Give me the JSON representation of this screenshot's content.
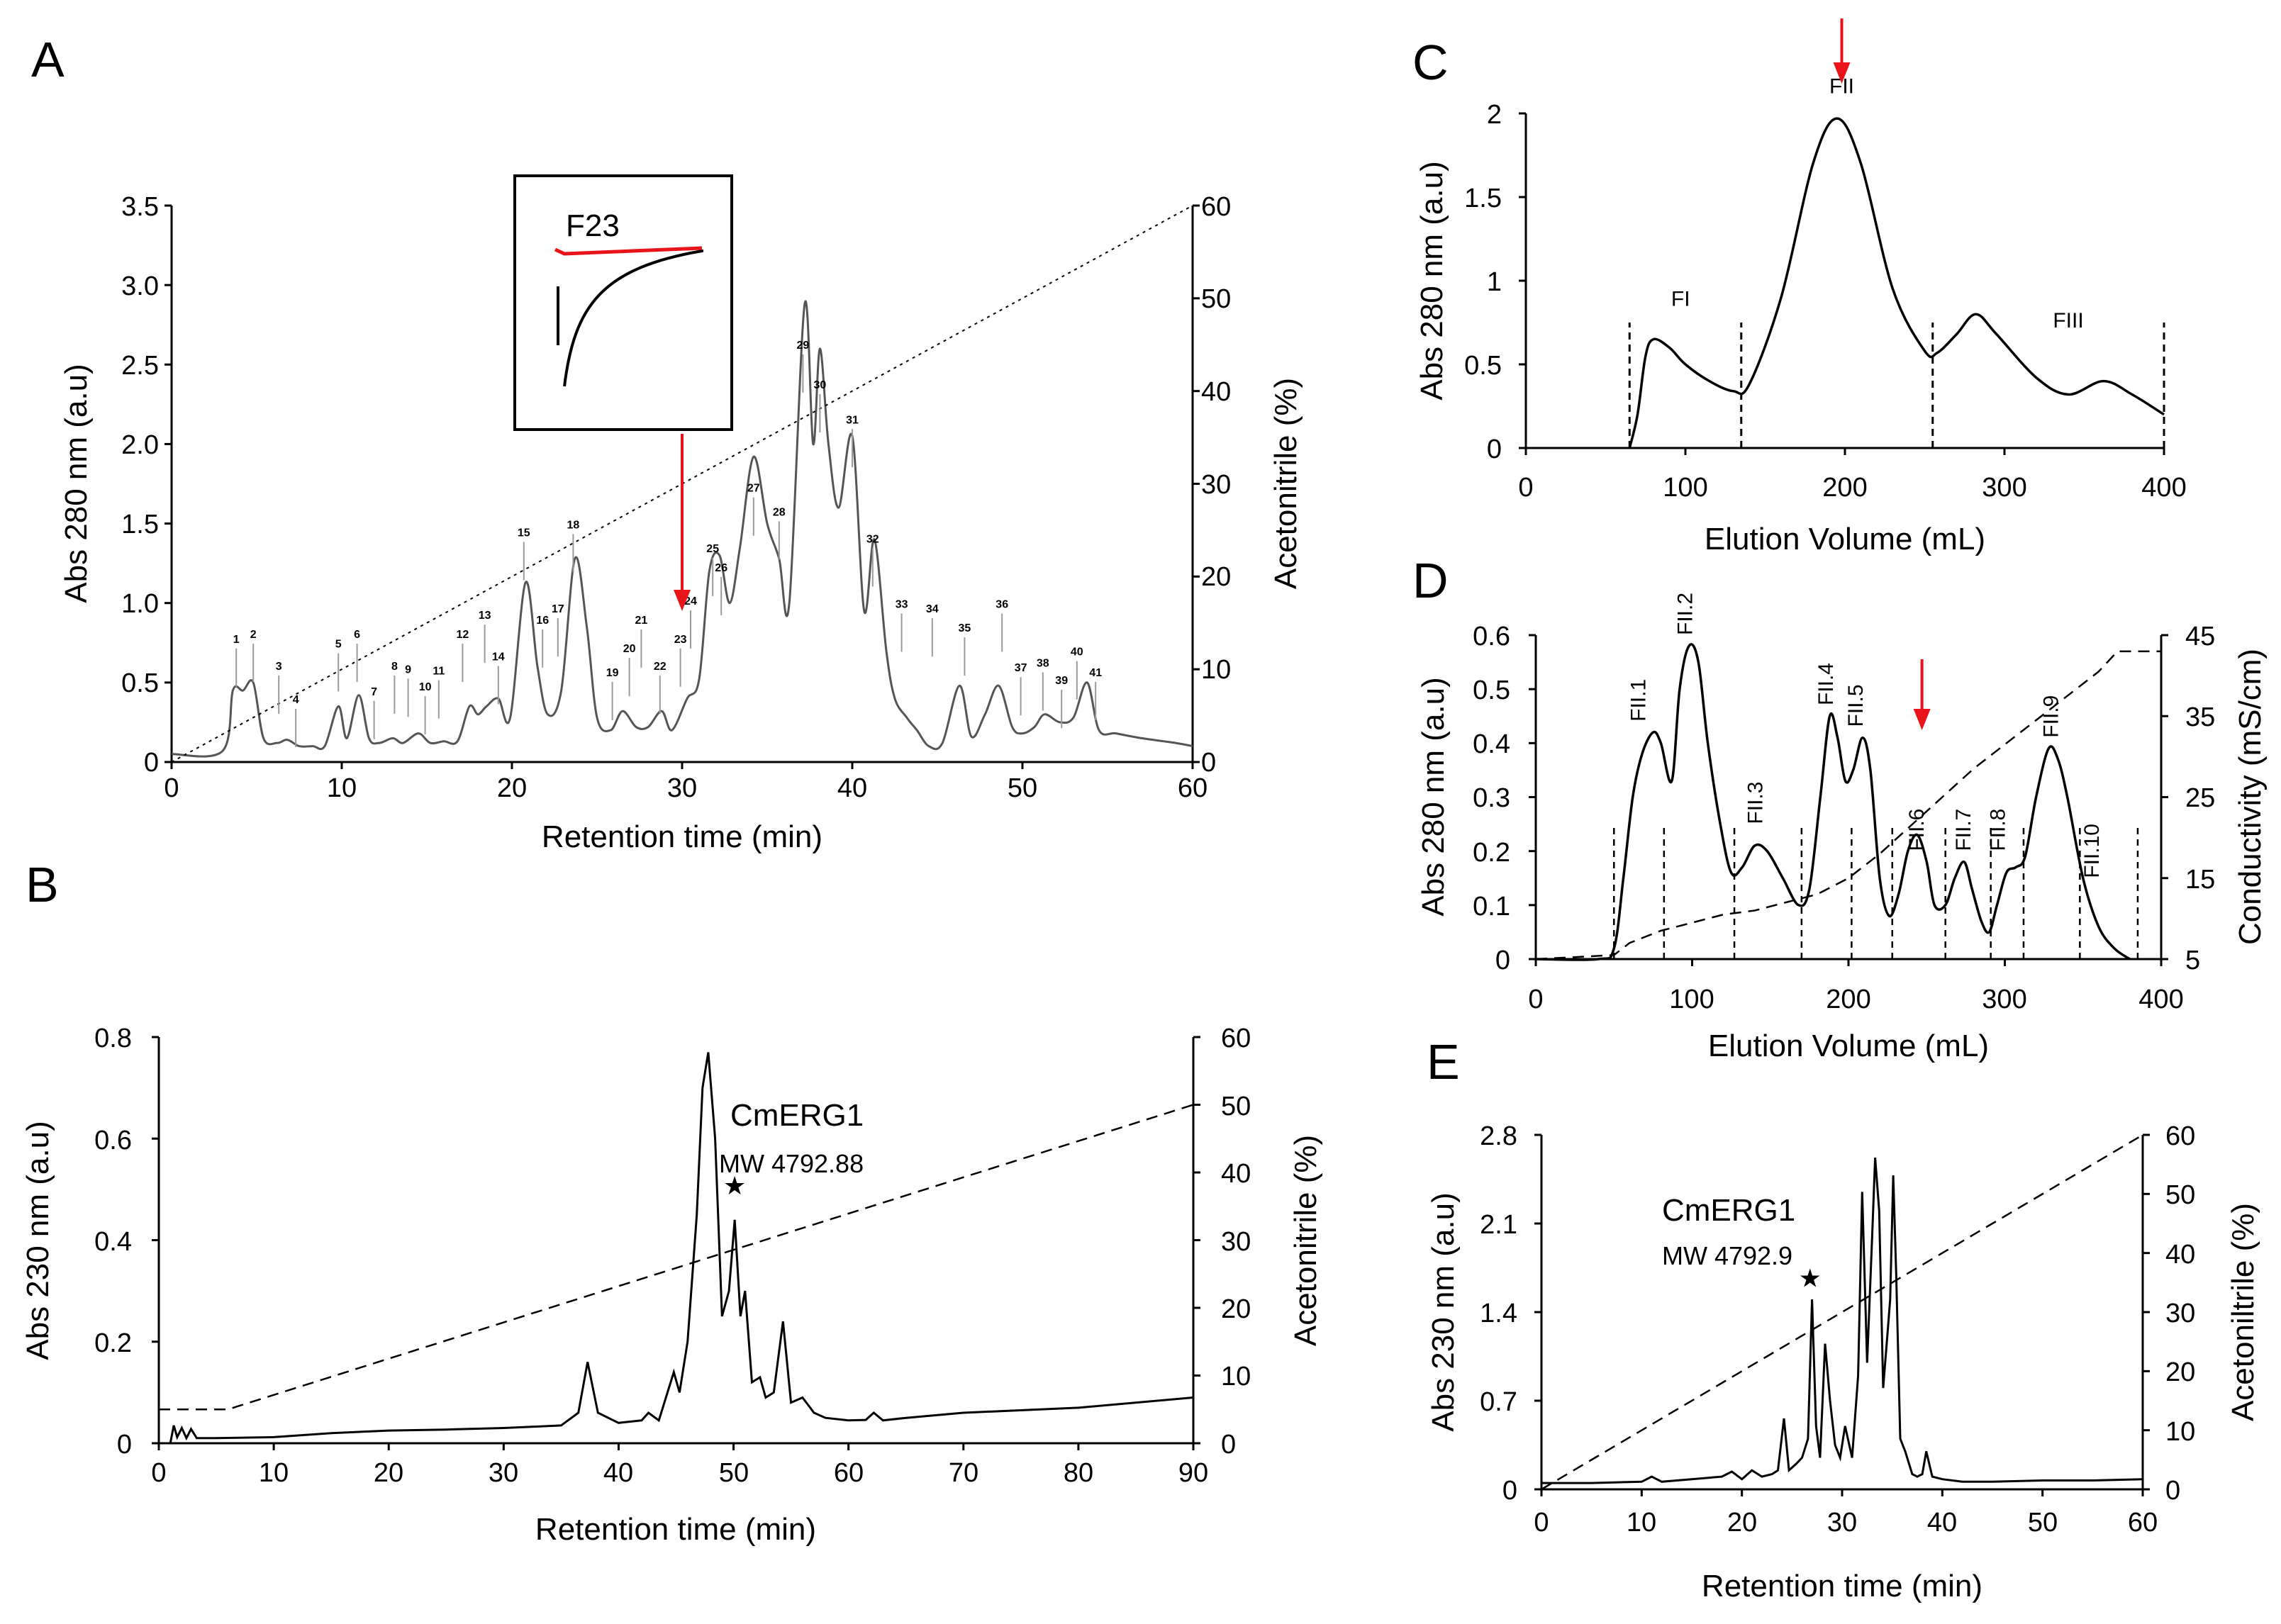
{
  "figure": {
    "panel_labels": [
      "A",
      "B",
      "C",
      "D",
      "E"
    ],
    "colors": {
      "trace": "#000000",
      "traceA": "#555555",
      "arrow": "#e8141a",
      "inset_red": "#e8141a"
    }
  },
  "chart_data": [
    {
      "id": "A",
      "type": "line",
      "xlabel": "Retention time (min)",
      "ylabel": "Abs 280 nm (a.u)",
      "y2label": "Acetonitrile (%)",
      "xlim": [
        0,
        60
      ],
      "ylim": [
        0,
        3.5
      ],
      "y2lim": [
        0,
        60
      ],
      "xticks": [
        "0",
        "10",
        "20",
        "30",
        "40",
        "50",
        "60"
      ],
      "yticks": [
        "0",
        "0.5",
        "1.0",
        "1.5",
        "2.0",
        "2.5",
        "3.0",
        "3.5"
      ],
      "y2ticks": [
        "0",
        "10",
        "20",
        "30",
        "40",
        "50",
        "60"
      ],
      "series": [
        {
          "name": "absorbance",
          "style": "solid",
          "x": [
            0,
            3,
            3.6,
            4.2,
            4.8,
            5.4,
            6.2,
            6.8,
            7.5,
            8.3,
            9,
            9.8,
            10.3,
            11,
            11.6,
            12.2,
            13,
            13.6,
            14.5,
            15.2,
            16,
            16.8,
            17.5,
            18,
            18.5,
            19.2,
            19.9,
            20.8,
            21.5,
            22.1,
            22.9,
            23.7,
            24.4,
            25,
            25.8,
            26.5,
            27.3,
            28,
            28.8,
            29.4,
            30.3,
            31,
            31.6,
            32.2,
            32.8,
            33.4,
            34.2,
            35,
            35.7,
            36.3,
            37.2,
            37.7,
            38.1,
            38.6,
            39.2,
            40,
            40.7,
            41.3,
            42,
            42.5,
            43.2,
            43.8,
            44.5,
            45.3,
            46.3,
            47,
            47.8,
            48.6,
            49.4,
            50,
            50.7,
            51.3,
            52.2,
            53,
            53.8,
            54.5,
            55.5,
            57,
            59,
            60
          ],
          "y": [
            0.05,
            0.07,
            0.45,
            0.45,
            0.5,
            0.15,
            0.12,
            0.14,
            0.1,
            0.1,
            0.1,
            0.35,
            0.15,
            0.42,
            0.15,
            0.12,
            0.15,
            0.12,
            0.18,
            0.12,
            0.13,
            0.13,
            0.35,
            0.3,
            0.35,
            0.4,
            0.28,
            1.13,
            0.6,
            0.3,
            0.45,
            1.28,
            0.85,
            0.28,
            0.2,
            0.32,
            0.22,
            0.22,
            0.32,
            0.2,
            0.4,
            0.52,
            1.2,
            1.3,
            1.0,
            1.35,
            1.92,
            1.5,
            1.28,
            1.0,
            2.88,
            2.0,
            2.6,
            2.0,
            1.6,
            2.05,
            0.95,
            1.4,
            0.7,
            0.4,
            0.28,
            0.2,
            0.1,
            0.12,
            0.48,
            0.16,
            0.3,
            0.48,
            0.22,
            0.18,
            0.22,
            0.3,
            0.25,
            0.28,
            0.5,
            0.2,
            0.18,
            0.15,
            0.12,
            0.1
          ]
        },
        {
          "name": "acetonitrile",
          "style": "dotted",
          "axis": "y2",
          "x": [
            0,
            60
          ],
          "y": [
            0,
            60
          ]
        }
      ],
      "peak_labels": [
        "1",
        "2",
        "3",
        "4",
        "5",
        "6",
        "7",
        "8",
        "9",
        "10",
        "11",
        "12",
        "13",
        "14",
        "15",
        "16",
        "17",
        "18",
        "19",
        "20",
        "21",
        "22",
        "23",
        "24",
        "25",
        "26",
        "27",
        "28",
        "29",
        "30",
        "31",
        "32",
        "33",
        "34",
        "35",
        "36",
        "37",
        "38",
        "39",
        "40",
        "41"
      ],
      "peak_label_x": [
        3.8,
        4.8,
        6.3,
        7.3,
        9.8,
        10.9,
        11.9,
        13.1,
        13.9,
        14.9,
        15.7,
        17.1,
        18.4,
        19.2,
        20.7,
        21.8,
        22.7,
        23.6,
        25.9,
        26.9,
        27.6,
        28.7,
        29.9,
        30.5,
        31.8,
        32.3,
        34.2,
        35.7,
        37.1,
        38.1,
        40,
        41.2,
        42.9,
        44.7,
        46.6,
        48.8,
        49.9,
        51.2,
        52.3,
        53.2,
        54.3
      ],
      "peak_label_y": [
        0.75,
        0.78,
        0.58,
        0.37,
        0.72,
        0.78,
        0.42,
        0.58,
        0.56,
        0.45,
        0.55,
        0.78,
        0.9,
        0.64,
        1.42,
        0.87,
        0.94,
        1.47,
        0.54,
        0.69,
        0.87,
        0.58,
        0.75,
        0.99,
        1.32,
        1.2,
        1.7,
        1.55,
        2.6,
        2.35,
        2.13,
        1.38,
        0.97,
        0.94,
        0.82,
        0.97,
        0.57,
        0.6,
        0.49,
        0.67,
        0.54
      ],
      "inset": {
        "label": "F23"
      },
      "arrow_x": 30
    },
    {
      "id": "B",
      "type": "line",
      "xlabel": "Retention time (min)",
      "ylabel": "Abs 230 nm (a.u)",
      "y2label": "Acetonitrile (%)",
      "xlim": [
        0,
        90
      ],
      "ylim": [
        0,
        0.8
      ],
      "y2lim": [
        0,
        60
      ],
      "xticks": [
        "0",
        "10",
        "20",
        "30",
        "40",
        "50",
        "60",
        "70",
        "80",
        "90"
      ],
      "yticks": [
        "0",
        "0.2",
        "0.4",
        "0.6",
        "0.8"
      ],
      "y2ticks": [
        "0",
        "10",
        "20",
        "30",
        "40",
        "50",
        "60"
      ],
      "series": [
        {
          "name": "absorbance",
          "style": "solid",
          "x": [
            0,
            1,
            1.3,
            1.6,
            2,
            2.4,
            2.8,
            3.3,
            5,
            10,
            15,
            20,
            25,
            30,
            33,
            35,
            36.5,
            37.3,
            38.2,
            40,
            42,
            42.6,
            43.5,
            44.8,
            45.3,
            46,
            46.8,
            47.3,
            47.8,
            48.4,
            49,
            49.6,
            50.1,
            50.6,
            51,
            51.6,
            52.3,
            52.8,
            53.5,
            54.3,
            55,
            56,
            57,
            58,
            60,
            61.5,
            62.2,
            63,
            65,
            70,
            80,
            90
          ],
          "y": [
            0,
            0,
            0.035,
            0.012,
            0.03,
            0.01,
            0.028,
            0.01,
            0.01,
            0.012,
            0.02,
            0.025,
            0.027,
            0.03,
            0.033,
            0.035,
            0.06,
            0.16,
            0.06,
            0.04,
            0.045,
            0.06,
            0.045,
            0.14,
            0.1,
            0.2,
            0.45,
            0.7,
            0.77,
            0.6,
            0.25,
            0.3,
            0.44,
            0.25,
            0.3,
            0.12,
            0.13,
            0.09,
            0.1,
            0.24,
            0.08,
            0.09,
            0.06,
            0.05,
            0.045,
            0.046,
            0.06,
            0.045,
            0.05,
            0.06,
            0.07,
            0.09
          ]
        },
        {
          "name": "acetonitrile",
          "style": "dashed",
          "axis": "y2",
          "x": [
            0,
            6,
            90
          ],
          "y": [
            5,
            5,
            50
          ]
        }
      ],
      "annotation": {
        "name": "CmERG1",
        "mw": "MW 4792.88",
        "star": "★"
      },
      "star_x": 50.1,
      "star_y": 0.49
    },
    {
      "id": "C",
      "type": "line",
      "xlabel": "Elution Volume (mL)",
      "ylabel": "Abs 280 nm (a.u)",
      "xlim": [
        0,
        400
      ],
      "ylim": [
        0,
        2
      ],
      "xticks": [
        "0",
        "100",
        "200",
        "300",
        "400"
      ],
      "yticks": [
        "0",
        "0.5",
        "1",
        "1.5",
        "2"
      ],
      "series": [
        {
          "name": "absorbance",
          "style": "solid",
          "x": [
            65,
            70,
            75,
            80,
            90,
            100,
            115,
            130,
            140,
            160,
            180,
            195,
            210,
            230,
            250,
            258,
            270,
            282,
            295,
            320,
            340,
            362,
            380,
            400
          ],
          "y": [
            0,
            0.2,
            0.55,
            0.65,
            0.6,
            0.5,
            0.4,
            0.34,
            0.38,
            0.9,
            1.7,
            1.97,
            1.7,
            0.95,
            0.58,
            0.57,
            0.68,
            0.8,
            0.68,
            0.42,
            0.32,
            0.4,
            0.32,
            0.2
          ]
        }
      ],
      "fractions": [
        "FI",
        "FII",
        "FIII"
      ],
      "fraction_x": [
        97,
        198,
        340
      ],
      "fraction_y": [
        0.85,
        2.12,
        0.72
      ],
      "dividers_x": [
        65,
        135,
        255,
        400
      ],
      "arrow_x": 198
    },
    {
      "id": "D",
      "type": "line",
      "xlabel": "Elution Volume (mL)",
      "ylabel": "Abs 280 nm (a.u)",
      "y2label": "Conductivity (mS/cm)",
      "xlim": [
        0,
        400
      ],
      "ylim": [
        0,
        0.6
      ],
      "y2lim": [
        5,
        45
      ],
      "xticks": [
        "0",
        "100",
        "200",
        "300",
        "400"
      ],
      "yticks": [
        "0",
        "0.1",
        "0.2",
        "0.3",
        "0.4",
        "0.5",
        "0.6"
      ],
      "y2ticks": [
        "5",
        "15",
        "25",
        "35",
        "45"
      ],
      "series": [
        {
          "name": "absorbance",
          "style": "solid",
          "x": [
            0,
            40,
            50,
            56,
            62,
            68,
            75,
            80,
            87,
            92,
            98,
            104,
            110,
            118,
            125,
            132,
            140,
            148,
            158,
            168,
            175,
            182,
            188,
            193,
            198,
            203,
            209,
            214,
            220,
            226,
            232,
            238,
            244,
            250,
            255,
            262,
            268,
            274,
            279,
            285,
            290,
            295,
            301,
            307,
            313,
            320,
            328,
            334,
            340,
            350,
            360,
            370,
            380
          ],
          "y": [
            0,
            0,
            0.02,
            0.15,
            0.3,
            0.38,
            0.42,
            0.4,
            0.33,
            0.5,
            0.58,
            0.55,
            0.4,
            0.25,
            0.16,
            0.17,
            0.21,
            0.2,
            0.15,
            0.1,
            0.13,
            0.3,
            0.45,
            0.41,
            0.33,
            0.35,
            0.41,
            0.35,
            0.15,
            0.08,
            0.12,
            0.2,
            0.23,
            0.18,
            0.1,
            0.1,
            0.15,
            0.18,
            0.13,
            0.07,
            0.05,
            0.1,
            0.16,
            0.17,
            0.19,
            0.3,
            0.39,
            0.37,
            0.3,
            0.15,
            0.06,
            0.02,
            0
          ]
        },
        {
          "name": "conductivity",
          "style": "dashed",
          "axis": "y2",
          "x": [
            0,
            50,
            60,
            80,
            100,
            120,
            140,
            160,
            180,
            200,
            220,
            240,
            260,
            280,
            300,
            320,
            340,
            360,
            372,
            385,
            400
          ],
          "y": [
            5,
            5.5,
            7,
            8.5,
            9.5,
            10.5,
            11,
            12,
            13,
            15,
            18,
            21.5,
            25,
            28.5,
            31.5,
            34.5,
            37.5,
            40.5,
            43,
            43,
            43
          ]
        }
      ],
      "fractions": [
        "FII.1",
        "FII.2",
        "FII.3",
        "FII.4",
        "FII.5",
        "FII.6",
        "FII.7",
        "FII.8",
        "FII.9",
        "FII.10"
      ],
      "fraction_x": [
        70,
        100,
        145,
        190,
        209,
        248,
        278,
        300,
        334,
        360
      ],
      "fraction_y": [
        0.44,
        0.6,
        0.25,
        0.47,
        0.43,
        0.2,
        0.2,
        0.2,
        0.41,
        0.15
      ],
      "dividers_x": [
        50,
        82,
        127,
        170,
        202,
        228,
        262,
        291,
        312,
        348,
        385
      ],
      "arrow_x": 247
    },
    {
      "id": "E",
      "type": "line",
      "xlabel": "Retention time (min)",
      "ylabel": "Abs 230 nm (a.u)",
      "y2label": "Acetoniltrile (%)",
      "xlim": [
        0,
        60
      ],
      "ylim": [
        0,
        2.8
      ],
      "y2lim": [
        0,
        60
      ],
      "xticks": [
        "0",
        "10",
        "20",
        "30",
        "40",
        "50",
        "60"
      ],
      "yticks": [
        "0",
        "0.7",
        "1.4",
        "2.1",
        "2.8"
      ],
      "y2ticks": [
        "0",
        "10",
        "20",
        "30",
        "40",
        "50",
        "60"
      ],
      "series": [
        {
          "name": "absorbance",
          "style": "solid",
          "x": [
            0,
            5,
            10,
            11,
            12,
            15,
            18,
            19,
            20,
            21,
            22,
            23,
            23.6,
            24.2,
            24.7,
            25.4,
            26,
            26.6,
            27,
            27.4,
            27.8,
            28.3,
            28.8,
            29.3,
            29.8,
            30.3,
            31,
            31.6,
            32,
            32.5,
            33,
            33.3,
            33.7,
            34.1,
            34.5,
            34.8,
            35.1,
            35.4,
            35.8,
            36.3,
            37,
            37.5,
            38,
            38.4,
            39,
            40,
            42,
            45,
            50,
            55,
            60
          ],
          "y": [
            0.05,
            0.05,
            0.06,
            0.1,
            0.06,
            0.08,
            0.1,
            0.14,
            0.08,
            0.15,
            0.1,
            0.12,
            0.15,
            0.56,
            0.15,
            0.2,
            0.25,
            0.4,
            1.5,
            0.5,
            0.25,
            1.15,
            0.7,
            0.35,
            0.25,
            0.5,
            0.25,
            0.9,
            2.35,
            1.0,
            2.0,
            2.62,
            2.2,
            0.8,
            1.2,
            1.5,
            2.48,
            1.7,
            0.4,
            0.3,
            0.12,
            0.1,
            0.12,
            0.3,
            0.1,
            0.08,
            0.06,
            0.06,
            0.07,
            0.07,
            0.08
          ]
        },
        {
          "name": "acetonitrile",
          "style": "dashed",
          "axis": "y2",
          "x": [
            0,
            60
          ],
          "y": [
            0,
            60
          ]
        }
      ],
      "annotation": {
        "name": "CmERG1",
        "mw": "MW 4792.9",
        "star": "★"
      },
      "star_x": 26.8,
      "star_y": 1.6
    }
  ]
}
